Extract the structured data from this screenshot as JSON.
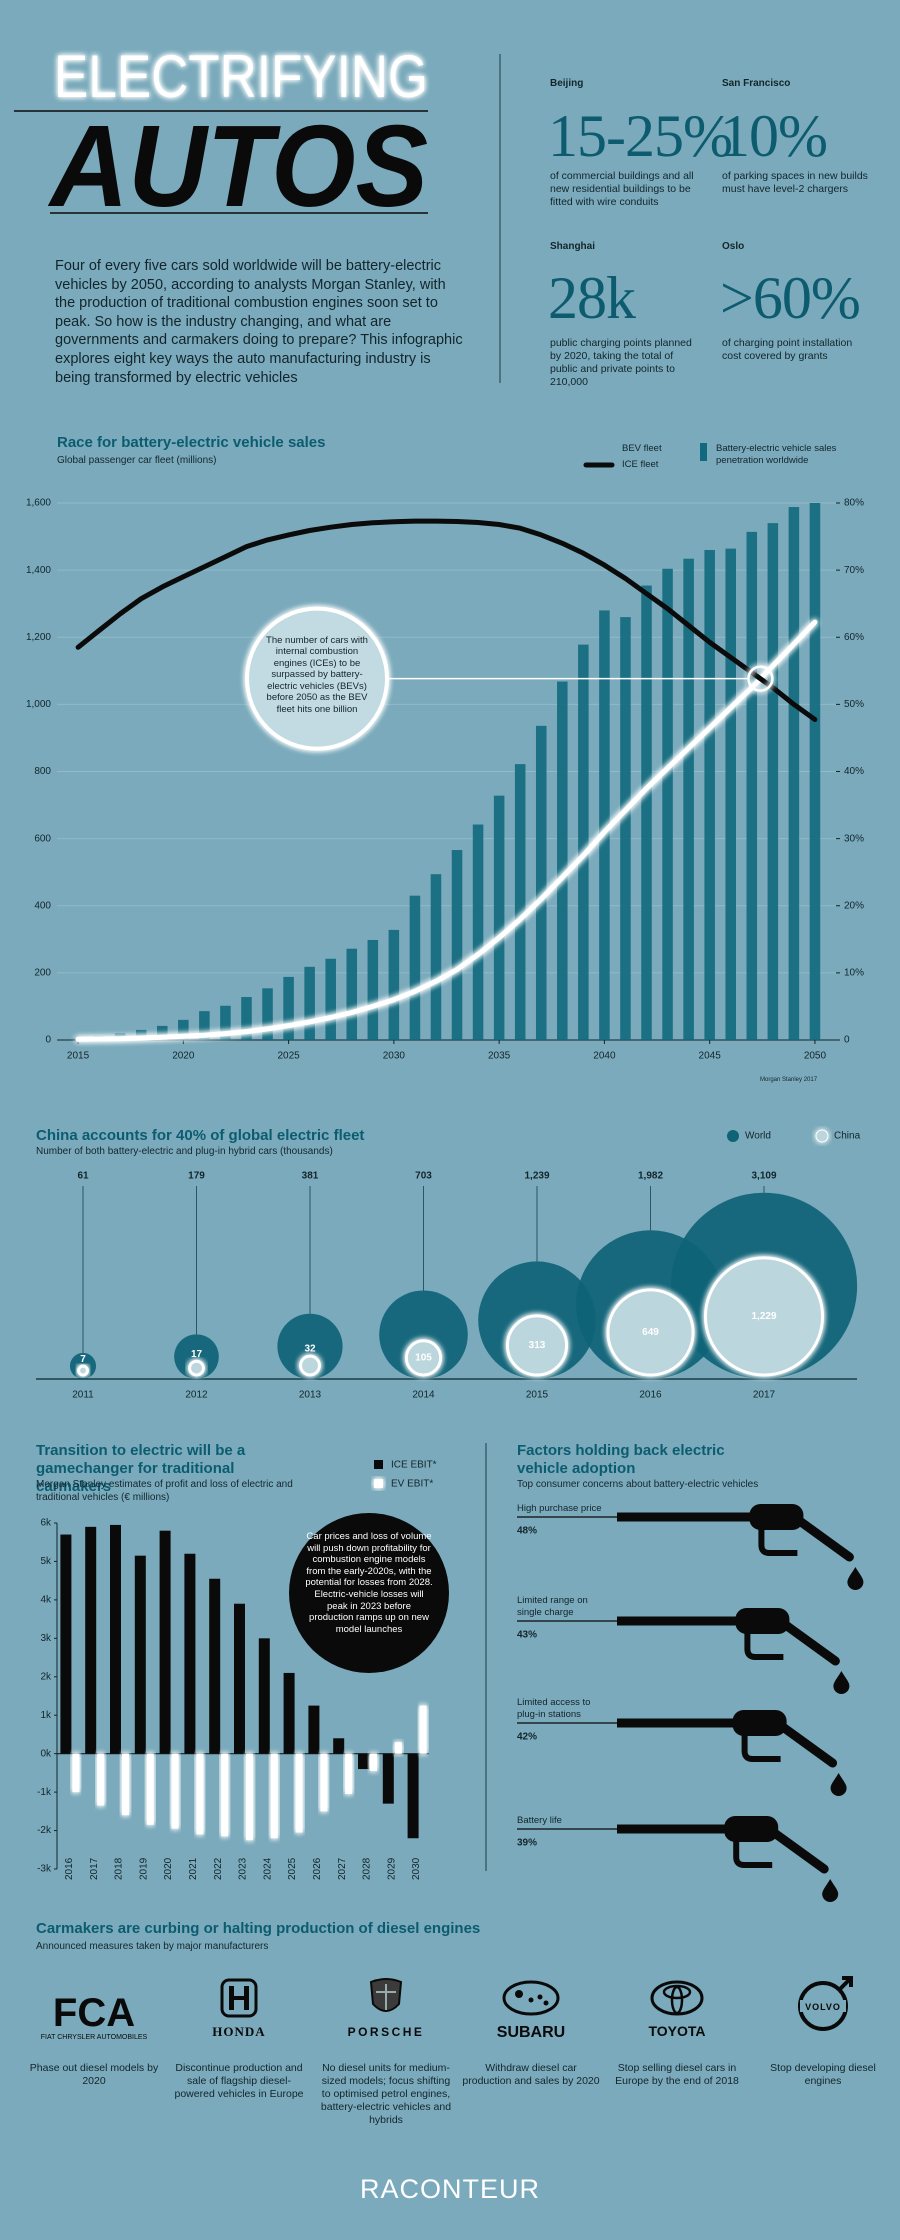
{
  "header": {
    "title_1": "ELECTRIFYING",
    "title_2": "AUTOS",
    "intro": "Four of every five cars sold worldwide will be battery-electric vehicles by 2050, according to analysts Morgan Stanley, with the production of traditional combustion engines soon set to peak. So how is the industry changing, and what are governments and carmakers doing to prepare? This infographic explores eight key ways the auto manufacturing industry is being transformed by electric vehicles"
  },
  "stats": [
    {
      "city": "Beijing",
      "figure": "15-25%",
      "text": "of commercial buildings and all new residential buildings to be fitted with wire conduits"
    },
    {
      "city": "San Francisco",
      "figure": "10%",
      "text": "of parking spaces in new builds must have level-2 chargers"
    },
    {
      "city": "Shanghai",
      "figure": "28k",
      "text": "public charging points planned by 2020, taking the total of public and private points to 210,000"
    },
    {
      "city": "Oslo",
      "figure": ">60%",
      "text": "of charging point installation cost covered by grants"
    }
  ],
  "chart_data": [
    {
      "type": "combo",
      "title": "Race for battery-electric vehicle sales",
      "subtitle": "Global passenger car fleet (millions)",
      "x": [
        2015,
        2016,
        2017,
        2018,
        2019,
        2020,
        2021,
        2022,
        2023,
        2024,
        2025,
        2026,
        2027,
        2028,
        2029,
        2030,
        2031,
        2032,
        2033,
        2034,
        2035,
        2036,
        2037,
        2038,
        2039,
        2040,
        2041,
        2042,
        2043,
        2044,
        2045,
        2046,
        2047,
        2048,
        2049,
        2050
      ],
      "xlim": [
        2014,
        2051
      ],
      "xticks": [
        2015,
        2020,
        2025,
        2030,
        2035,
        2040,
        2045,
        2050
      ],
      "ylim": [
        0,
        1600
      ],
      "yticks": [
        0,
        200,
        400,
        600,
        800,
        {
          "value": 1000,
          "label": "1,000"
        },
        {
          "value": 1200,
          "label": "1,200"
        },
        {
          "value": 1400,
          "label": "1,400"
        },
        {
          "value": 1600,
          "label": "1,600"
        }
      ],
      "y2lim": [
        0,
        80
      ],
      "y2ticks": [
        0,
        {
          "value": 10,
          "label": "10%"
        },
        {
          "value": 20,
          "label": "20%"
        },
        {
          "value": 30,
          "label": "30%"
        },
        {
          "value": 40,
          "label": "40%"
        },
        {
          "value": 50,
          "label": "50%"
        },
        {
          "value": 60,
          "label": "60%"
        },
        {
          "value": 70,
          "label": "70%"
        },
        {
          "value": 80,
          "label": "80%"
        }
      ],
      "grid": true,
      "series": [
        {
          "name": "BEV fleet",
          "type": "line",
          "color": "#ffffff",
          "values": [
            2,
            3,
            4,
            6,
            8,
            11,
            14,
            19,
            25,
            33,
            43,
            54,
            67,
            82,
            100,
            120,
            145,
            175,
            210,
            255,
            305,
            360,
            420,
            485,
            550,
            620,
            685,
            750,
            810,
            870,
            930,
            990,
            1050,
            1115,
            1180,
            1245
          ]
        },
        {
          "name": "ICE fleet",
          "type": "line",
          "color": "#0b0b0b",
          "values": [
            1170,
            1220,
            1270,
            1315,
            1350,
            1380,
            1410,
            1440,
            1470,
            1490,
            1505,
            1518,
            1528,
            1536,
            1541,
            1544,
            1546,
            1546,
            1545,
            1542,
            1536,
            1525,
            1505,
            1480,
            1450,
            1415,
            1375,
            1330,
            1285,
            1235,
            1185,
            1140,
            1095,
            1050,
            1000,
            955
          ]
        },
        {
          "name": "Battery-electric vehicle sales penetration worldwide",
          "type": "bar",
          "axis": "y2",
          "color": "#12697d",
          "values": [
            0.2,
            0.6,
            1,
            1.5,
            2.1,
            3,
            4.3,
            5.1,
            6.4,
            7.7,
            9.4,
            10.9,
            12.1,
            13.6,
            14.9,
            16.4,
            21.5,
            24.7,
            28.3,
            32.1,
            36.4,
            41.1,
            46.8,
            53.4,
            58.9,
            64,
            63,
            67.7,
            70.2,
            71.7,
            73,
            73.2,
            75.7,
            77,
            79.4,
            80
          ]
        }
      ],
      "annotation": "The number of cars with internal combustion engines (ICEs) to be surpassed by battery-electric vehicles (BEVs) before 2050 as the BEV fleet hits one billion",
      "source": "Morgan Stanley 2017"
    },
    {
      "type": "bubble",
      "title": "China accounts for 40% of global electric fleet",
      "subtitle": "Number of both battery-electric and plug-in hybrid cars (thousands)",
      "categories": [
        "2011",
        "2012",
        "2013",
        "2014",
        "2015",
        "2016",
        "2017"
      ],
      "series": [
        {
          "name": "World",
          "color": "#0e6376",
          "values": [
            61,
            179,
            381,
            703,
            1239,
            1982,
            3109
          ],
          "value_labels": [
            "61",
            "179",
            "381",
            "703",
            "1,239",
            "1,982",
            "3,109"
          ]
        },
        {
          "name": "China",
          "color": "#bcd6de",
          "values": [
            7,
            17,
            32,
            105,
            313,
            649,
            1229
          ],
          "value_labels": [
            "7",
            "17",
            "32",
            "105",
            "313",
            "649",
            "1,229"
          ]
        }
      ]
    },
    {
      "type": "bar",
      "title": "Transition to electric will be a gamechanger for traditional carmakers",
      "subtitle": "Morgan Stanley estimates of profit and loss of electric and traditional vehicles (€ millions)",
      "categories": [
        "2016",
        "2017",
        "2018",
        "2019",
        "2020",
        "2021",
        "2022",
        "2023",
        "2024",
        "2025",
        "2026",
        "2027",
        "2028",
        "2029",
        "2030"
      ],
      "ylim": [
        -3000,
        6000
      ],
      "yticks": [
        {
          "value": -3000,
          "label": "-3k"
        },
        {
          "value": -2000,
          "label": "-2k"
        },
        {
          "value": -1000,
          "label": "-1k"
        },
        {
          "value": 0,
          "label": "0k"
        },
        {
          "value": 1000,
          "label": "1k"
        },
        {
          "value": 2000,
          "label": "2k"
        },
        {
          "value": 3000,
          "label": "3k"
        },
        {
          "value": 4000,
          "label": "4k"
        },
        {
          "value": 5000,
          "label": "5k"
        },
        {
          "value": 6000,
          "label": "6k"
        }
      ],
      "grid": false,
      "series": [
        {
          "name": "ICE EBIT*",
          "color": "#0a0a0a",
          "values": [
            5700,
            5900,
            5950,
            5150,
            5800,
            5200,
            4550,
            3900,
            3000,
            2100,
            1250,
            400,
            -400,
            -1300,
            -2200
          ]
        },
        {
          "name": "EV EBIT*",
          "color": "#ffffff",
          "values": [
            -1000,
            -1350,
            -1600,
            -1850,
            -1950,
            -2100,
            -2150,
            -2250,
            -2200,
            -2050,
            -1500,
            -1050,
            -450,
            300,
            1250
          ]
        }
      ],
      "annotation": "Car prices and loss of volume will push down profitability for combustion engine models from the early-2020s, with the potential for losses from 2028. Electric-vehicle losses will peak in 2023 before production ramps up on new model launches"
    },
    {
      "type": "nozzle",
      "title": "Factors holding back electric vehicle adoption",
      "subtitle": "Top consumer concerns about battery-electric vehicles",
      "categories": [
        "High purchase price",
        "Limited range on single charge",
        "Limited access to plug-in stations",
        "Battery life"
      ],
      "values": [
        48,
        43,
        42,
        39
      ],
      "value_labels": [
        "48%",
        "43%",
        "42%",
        "39%"
      ],
      "color": "#0a0a0a"
    }
  ],
  "carmakers": {
    "title": "Carmakers are curbing or halting production of diesel engines",
    "subtitle": "Announced measures taken by major manufacturers",
    "items": [
      {
        "logo": "FCA",
        "logo_caption": "FIAT CHRYSLER AUTOMOBILES",
        "text": "Phase out diesel models by 2020"
      },
      {
        "logo": "HONDA",
        "text": "Discontinue production and sale of flagship diesel-powered vehicles in Europe"
      },
      {
        "logo": "PORSCHE",
        "text": "No diesel units for medium-sized models; focus shifting to optimised petrol engines, battery-electric vehicles and hybrids"
      },
      {
        "logo": "SUBARU",
        "text": "Withdraw diesel car production and sales by 2020"
      },
      {
        "logo": "TOYOTA",
        "text": "Stop selling diesel cars in Europe by the end of 2018"
      },
      {
        "logo": "VOLVO",
        "text": "Stop developing diesel engines"
      }
    ]
  },
  "footer": {
    "brand": "RACONTEUR"
  }
}
